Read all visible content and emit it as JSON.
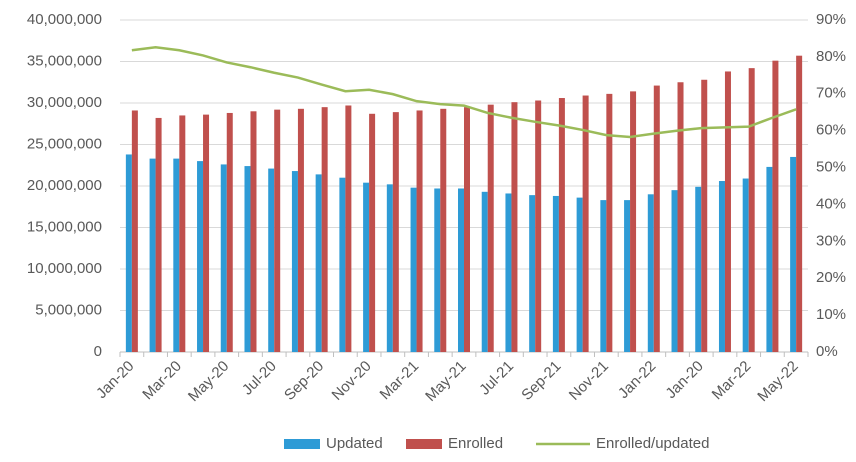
{
  "chart_data": {
    "type": "bar",
    "categories": [
      "Jan-20",
      null,
      "Mar-20",
      null,
      "May-20",
      null,
      "Jul-20",
      null,
      "Sep-20",
      null,
      "Nov-20",
      null,
      "Mar-21",
      null,
      "May-21",
      null,
      "Jul-21",
      null,
      "Sep-21",
      null,
      "Nov-21",
      null,
      "Jan-22",
      null,
      "Jan-20",
      null,
      "Mar-22",
      null,
      "May-22"
    ],
    "series": [
      {
        "name": "Updated",
        "color": "#2e9bd6",
        "values": [
          23800000,
          23300000,
          23300000,
          23000000,
          22600000,
          22400000,
          22100000,
          21800000,
          21400000,
          21000000,
          20400000,
          20200000,
          19800000,
          19700000,
          19700000,
          19300000,
          19100000,
          18900000,
          18800000,
          18600000,
          18300000,
          18300000,
          19000000,
          19500000,
          19900000,
          20600000,
          20900000,
          22300000,
          23500000
        ]
      },
      {
        "name": "Enrolled",
        "color": "#c0504d",
        "values": [
          29100000,
          28200000,
          28500000,
          28600000,
          28800000,
          29000000,
          29200000,
          29300000,
          29500000,
          29700000,
          28700000,
          28900000,
          29100000,
          29300000,
          29500000,
          29800000,
          30100000,
          30300000,
          30600000,
          30900000,
          31100000,
          31400000,
          32100000,
          32500000,
          32800000,
          33800000,
          34200000,
          35100000,
          35700000
        ]
      },
      {
        "name": "Enrolled/updated",
        "type": "line",
        "axis": "y2",
        "color": "#9bbb59",
        "values": [
          81.8,
          82.6,
          81.8,
          80.4,
          78.5,
          77.2,
          75.7,
          74.4,
          72.5,
          70.7,
          71.1,
          69.9,
          68.0,
          67.2,
          66.8,
          64.8,
          63.5,
          62.4,
          61.4,
          60.2,
          58.8,
          58.3,
          59.2,
          60.0,
          60.7,
          60.9,
          61.1,
          63.5,
          65.8
        ]
      }
    ],
    "ylim": [
      0,
      40000000
    ],
    "yticks": [
      0,
      {
        "value": 5000000,
        "label": "5,000,000"
      },
      {
        "value": 10000000,
        "label": "10,000,000"
      },
      {
        "value": 15000000,
        "label": "15,000,000"
      },
      {
        "value": 20000000,
        "label": "20,000,000"
      },
      {
        "value": 25000000,
        "label": "25,000,000"
      },
      {
        "value": 30000000,
        "label": "30,000,000"
      },
      {
        "value": 35000000,
        "label": "35,000,000"
      },
      {
        "value": 40000000,
        "label": "40,000,000"
      }
    ],
    "y2lim": [
      0,
      90
    ],
    "y2ticks": [
      {
        "value": 0,
        "label": "0%"
      },
      {
        "value": 10,
        "label": "10%"
      },
      {
        "value": 20,
        "label": "20%"
      },
      {
        "value": 30,
        "label": "30%"
      },
      {
        "value": 40,
        "label": "40%"
      },
      {
        "value": 50,
        "label": "50%"
      },
      {
        "value": 60,
        "label": "60%"
      },
      {
        "value": 70,
        "label": "70%"
      },
      {
        "value": 80,
        "label": "80%"
      },
      {
        "value": 90,
        "label": "90%"
      }
    ],
    "grid": true,
    "legend": "bottom"
  }
}
